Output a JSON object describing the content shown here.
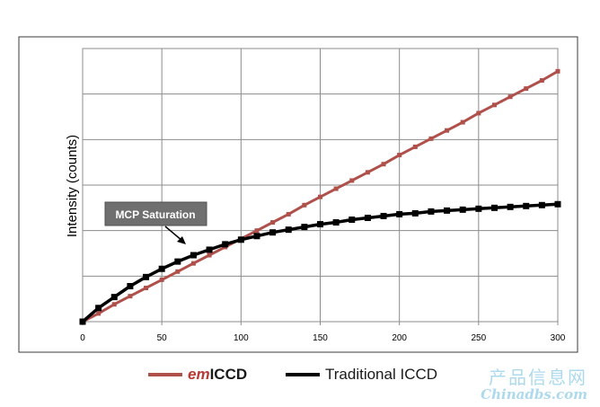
{
  "chart_data": {
    "type": "line",
    "xlim": [
      0,
      300
    ],
    "ylim": [
      0,
      300
    ],
    "xticks": [
      0,
      50,
      100,
      150,
      200,
      250,
      300
    ],
    "ylabel": "Intensity (counts)",
    "grid": true,
    "legend": "bottom",
    "annotation": {
      "text": "MCP Saturation"
    },
    "series": [
      {
        "name": "emICCD",
        "color": "#b0504b",
        "x": [
          0,
          10,
          20,
          30,
          40,
          50,
          60,
          70,
          80,
          90,
          100,
          110,
          120,
          130,
          140,
          150,
          160,
          170,
          180,
          190,
          200,
          210,
          220,
          230,
          240,
          250,
          260,
          270,
          280,
          290,
          300
        ],
        "y": [
          0,
          9,
          19,
          28,
          37,
          46,
          55,
          64,
          73,
          82,
          91,
          100,
          109,
          118,
          128,
          137,
          146,
          155,
          164,
          173,
          183,
          192,
          201,
          210,
          219,
          229,
          238,
          247,
          256,
          265,
          275
        ]
      },
      {
        "name": "Traditional ICCD",
        "color": "#000000",
        "x": [
          0,
          10,
          20,
          30,
          40,
          50,
          60,
          70,
          80,
          90,
          100,
          110,
          120,
          130,
          140,
          150,
          160,
          170,
          180,
          190,
          200,
          210,
          220,
          230,
          240,
          250,
          260,
          270,
          280,
          290,
          300
        ],
        "y": [
          0,
          15,
          27,
          39,
          49,
          58,
          66,
          73,
          79,
          85,
          90,
          94,
          98,
          101,
          104,
          107,
          109,
          112,
          114,
          116,
          118,
          119,
          121,
          122,
          123,
          124,
          125,
          126,
          127,
          128,
          129
        ]
      }
    ]
  },
  "legend": {
    "em_prefix": "em",
    "em_suffix": "ICCD",
    "traditional": "Traditional ICCD"
  },
  "watermark": {
    "line1": "产品信息网",
    "line2": "Chinadbs.com"
  }
}
